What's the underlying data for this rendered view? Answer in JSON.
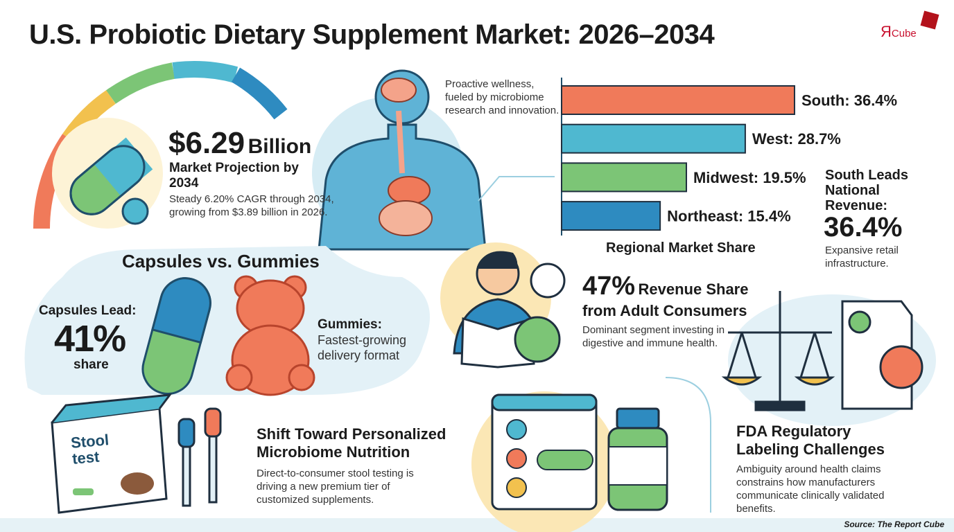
{
  "header": {
    "title": "U.S. Probiotic Dietary Supplement Market: 2026–2034",
    "logo_mark": "Я",
    "logo_text": "Cube"
  },
  "projection": {
    "value": "$6.29",
    "unit": "Billion",
    "label": "Market Projection by 2034",
    "text": "Steady 6.20% CAGR through 2034, growing from $3.89 billion in 2026."
  },
  "wellness": {
    "text": "Proactive wellness, fueled by microbiome research and innovation."
  },
  "chart_data": {
    "type": "bar",
    "title": "Regional Market Share",
    "values": [
      36.4,
      28.7,
      19.5,
      15.4
    ],
    "value_labels": [
      "South: 36.4%",
      "West: 28.7%",
      "Midwest: 19.5%",
      "Northeast: 15.4%"
    ],
    "colors": [
      "#f07a5a",
      "#4fb8d0",
      "#7cc576",
      "#2e8bc0"
    ]
  },
  "south": {
    "title": "South Leads National Revenue:",
    "value": "36.4%",
    "text": "Expansive retail infrastructure."
  },
  "formats": {
    "title": "Capsules vs. Gummies",
    "capsules_label": "Capsules Lead:",
    "capsules_value": "41%",
    "capsules_unit": "share",
    "gummies_title": "Gummies:",
    "gummies_text": "Fastest-growing delivery format"
  },
  "adults": {
    "value": "47%",
    "title_rest": "Revenue Share",
    "title_line2": "from Adult Consumers",
    "text": "Dominant segment investing in digestive and immune health."
  },
  "personalized": {
    "illustration_label": "Stool test",
    "title": "Shift Toward Personalized Microbiome Nutrition",
    "text": "Direct-to-consumer stool testing is driving a new premium tier of customized supplements."
  },
  "fda": {
    "title": "FDA Regulatory Labeling Challenges",
    "text": "Ambiguity around health claims constrains how manufacturers communicate clinically validated benefits."
  },
  "source": "Source: The Report Cube"
}
